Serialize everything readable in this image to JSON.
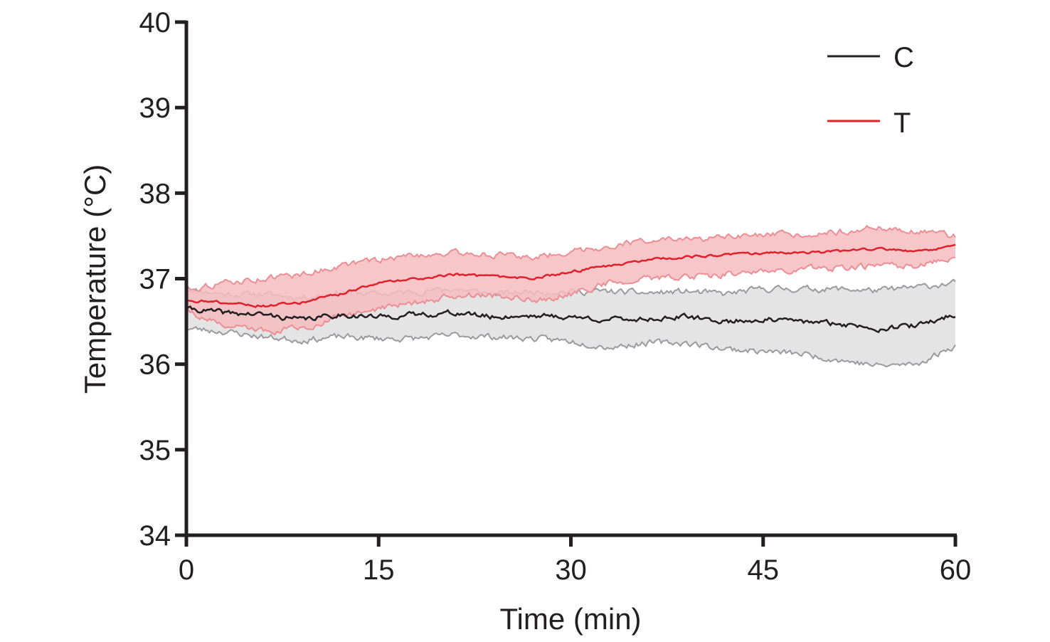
{
  "chart_data": {
    "type": "line",
    "xlabel": "Time (min)",
    "ylabel": "Temperature (°C)",
    "xlim": [
      0,
      60
    ],
    "ylim": [
      34,
      40
    ],
    "xticks": [
      0,
      15,
      30,
      45,
      60
    ],
    "yticks": [
      34,
      35,
      36,
      37,
      38,
      39,
      40
    ],
    "grid": false,
    "legend_position": "top-right",
    "series": [
      {
        "name": "C",
        "color": "#231f20",
        "band_fill": "#e4e4e5",
        "band_edge": "#9a9ba0",
        "x": [
          0,
          3,
          6,
          9,
          12,
          15,
          18,
          21,
          24,
          27,
          30,
          33,
          36,
          39,
          42,
          45,
          48,
          51,
          54,
          57,
          60
        ],
        "mean": [
          36.65,
          36.6,
          36.58,
          36.52,
          36.58,
          36.55,
          36.58,
          36.6,
          36.55,
          36.57,
          36.55,
          36.52,
          36.53,
          36.55,
          36.5,
          36.52,
          36.5,
          36.47,
          36.42,
          36.45,
          36.58
        ],
        "lower": [
          36.42,
          36.38,
          36.32,
          36.28,
          36.32,
          36.3,
          36.3,
          36.34,
          36.32,
          36.3,
          36.27,
          36.2,
          36.25,
          36.25,
          36.18,
          36.15,
          36.12,
          36.05,
          35.98,
          36.0,
          36.22
        ],
        "upper": [
          36.88,
          36.82,
          36.82,
          36.78,
          36.84,
          36.82,
          36.85,
          36.88,
          36.82,
          36.85,
          36.85,
          36.85,
          36.83,
          36.85,
          36.82,
          36.88,
          36.88,
          36.88,
          36.86,
          36.9,
          36.95
        ]
      },
      {
        "name": "T",
        "color": "#e0202a",
        "band_fill": "#f6bcbf",
        "band_edge": "#eb8f95",
        "x": [
          0,
          3,
          6,
          9,
          12,
          15,
          18,
          21,
          24,
          27,
          30,
          33,
          36,
          39,
          42,
          45,
          48,
          51,
          54,
          57,
          60
        ],
        "mean": [
          36.75,
          36.72,
          36.68,
          36.72,
          36.82,
          36.95,
          37.0,
          37.05,
          37.02,
          37.0,
          37.08,
          37.15,
          37.22,
          37.25,
          37.28,
          37.3,
          37.3,
          37.32,
          37.35,
          37.32,
          37.38
        ],
        "lower": [
          36.62,
          36.45,
          36.38,
          36.42,
          36.55,
          36.65,
          36.72,
          36.8,
          36.8,
          36.75,
          36.82,
          36.95,
          37.0,
          37.02,
          37.05,
          37.08,
          37.12,
          37.12,
          37.15,
          37.15,
          37.25
        ],
        "upper": [
          36.88,
          36.95,
          37.0,
          37.05,
          37.15,
          37.22,
          37.28,
          37.3,
          37.28,
          37.25,
          37.32,
          37.38,
          37.45,
          37.45,
          37.48,
          37.5,
          37.52,
          37.55,
          37.6,
          37.55,
          37.5
        ]
      }
    ]
  }
}
